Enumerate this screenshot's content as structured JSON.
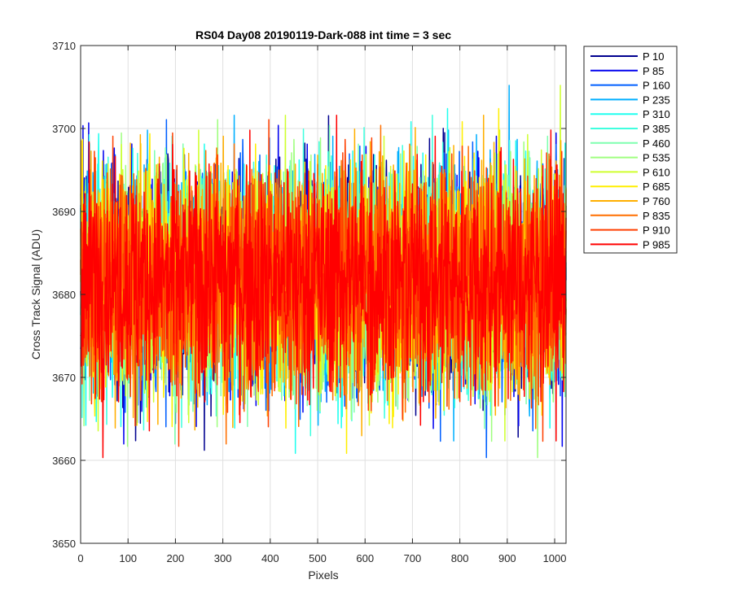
{
  "chart_data": {
    "type": "line",
    "title": "RS04 Day08 20190119-Dark-088 int time = 3 sec",
    "xlabel": "Pixels",
    "ylabel": "Cross Track Signal (ADU)",
    "xlim": [
      0,
      1024
    ],
    "ylim": [
      3650,
      3710
    ],
    "xticks": [
      0,
      100,
      200,
      300,
      400,
      500,
      600,
      700,
      800,
      900,
      1000
    ],
    "yticks": [
      3650,
      3660,
      3670,
      3680,
      3690,
      3700,
      3710
    ],
    "grid": true,
    "legend_position": "outside-top-right",
    "signal_summary": {
      "mean": 3682,
      "typical_spread": 8,
      "min": 3655,
      "max": 3709
    },
    "series": [
      {
        "name": "P 10",
        "color": "#00008F"
      },
      {
        "name": "P 85",
        "color": "#0000EF"
      },
      {
        "name": "P 160",
        "color": "#005FFF"
      },
      {
        "name": "P 235",
        "color": "#00AFFF"
      },
      {
        "name": "P 310",
        "color": "#1FFFEF"
      },
      {
        "name": "P 385",
        "color": "#3FFFDF"
      },
      {
        "name": "P 460",
        "color": "#7FFFAF"
      },
      {
        "name": "P 535",
        "color": "#9FFF7F"
      },
      {
        "name": "P 610",
        "color": "#CFFF2F"
      },
      {
        "name": "P 685",
        "color": "#FFEF00"
      },
      {
        "name": "P 760",
        "color": "#FFAF00"
      },
      {
        "name": "P 835",
        "color": "#FF6F00"
      },
      {
        "name": "P 910",
        "color": "#FF3F00"
      },
      {
        "name": "P 985",
        "color": "#FF0000"
      }
    ]
  }
}
